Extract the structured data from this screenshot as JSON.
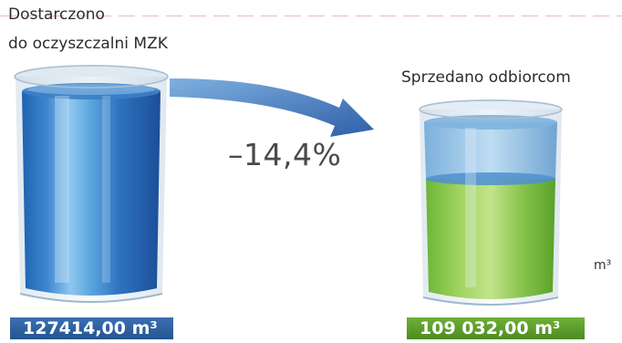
{
  "source": {
    "label_line1": "Dostarczono",
    "label_line2": "do oczyszczalni MZK",
    "value": "127414,00 m³",
    "color": "#2e63a8"
  },
  "destination": {
    "label": "Sprzedano odbiorcom",
    "value": "109 032,00 m³",
    "color": "#5fa22e"
  },
  "change": {
    "text": "–14,4%"
  },
  "unit_label": "m³",
  "arrow": {
    "color": "#3a6db4"
  }
}
